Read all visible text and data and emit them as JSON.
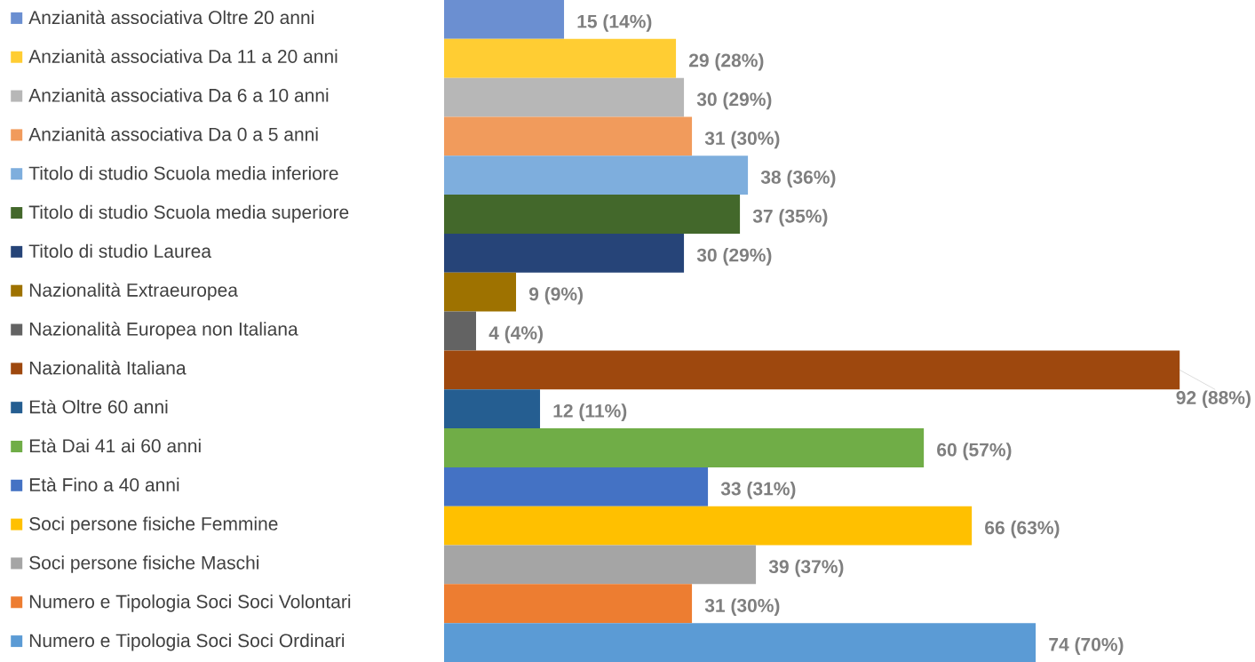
{
  "chart_data": {
    "type": "bar",
    "orientation": "horizontal",
    "categories": [
      "Anzianità associativa Oltre 20 anni",
      "Anzianità associativa Da 11 a 20 anni",
      "Anzianità associativa Da 6 a 10 anni",
      "Anzianità associativa Da 0 a 5 anni",
      "Titolo di studio Scuola media inferiore",
      "Titolo di studio Scuola media superiore",
      "Titolo di studio Laurea",
      "Nazionalità Extraeuropea",
      "Nazionalità Europea non Italiana",
      "Nazionalità Italiana",
      "Età Oltre 60 anni",
      "Età Dai 41 ai 60 anni",
      "Età Fino a 40 anni",
      "Soci persone fisiche Femmine",
      "Soci persone fisiche Maschi",
      "Numero e Tipologia Soci Soci Volontari",
      "Numero e Tipologia Soci Soci Ordinari"
    ],
    "values": [
      15,
      29,
      30,
      31,
      38,
      37,
      30,
      9,
      4,
      92,
      12,
      60,
      33,
      66,
      39,
      31,
      74
    ],
    "value_labels": [
      "15 (14%)",
      "29 (28%)",
      "30 (29%)",
      "31 (30%)",
      "38 (36%)",
      "37 (35%)",
      "30 (29%)",
      "9 (9%)",
      "4 (4%)",
      "92 (88%)",
      "12 (11%)",
      "60 (57%)",
      "33 (31%)",
      "66 (63%)",
      "39 (37%)",
      "31 (30%)",
      "74 (70%)"
    ],
    "colors": [
      "#6b8fd1",
      "#ffcd33",
      "#b7b7b7",
      "#f19b5c",
      "#7eaedd",
      "#43682b",
      "#264478",
      "#9e7200",
      "#636363",
      "#9e480e",
      "#255e91",
      "#70ad47",
      "#4472c4",
      "#ffc000",
      "#a5a5a5",
      "#ed7d31",
      "#5b9bd5"
    ]
  }
}
